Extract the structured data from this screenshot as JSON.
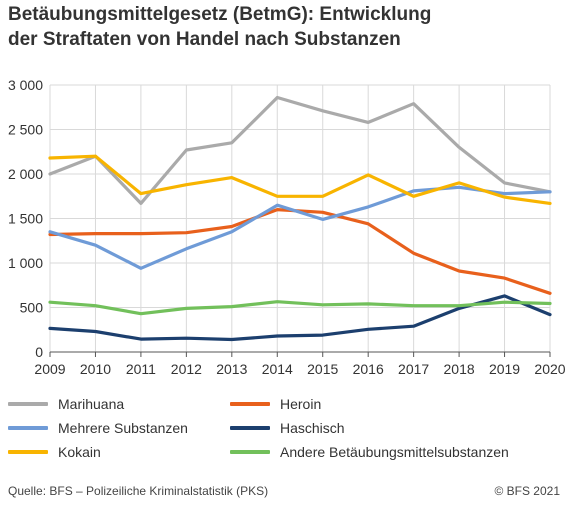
{
  "header": {
    "title_line1": "Betäubungsmittelgesetz (BetmG): Entwicklung",
    "title_line2": "der Straftaten von Handel nach Substanzen"
  },
  "footer": {
    "source": "Quelle: BFS – Polizeiliche Kriminalstatistik (PKS)",
    "copyright": "© BFS 2021"
  },
  "chart_data": {
    "type": "line",
    "title": "Betäubungsmittelgesetz (BetmG): Entwicklung der Straftaten von Handel nach Substanzen",
    "x": [
      "2009",
      "2010",
      "2011",
      "2012",
      "2013",
      "2014",
      "2015",
      "2016",
      "2017",
      "2018",
      "2019",
      "2020"
    ],
    "ylim": [
      0,
      3000
    ],
    "yticks": [
      0,
      500,
      1000,
      1500,
      2000,
      2500,
      3000
    ],
    "ytick_labels": [
      "0",
      "500",
      "1 000",
      "1 500",
      "2 000",
      "2 500",
      "3 000"
    ],
    "grid": true,
    "legend_position": "bottom",
    "series": [
      {
        "name": "Marihuana",
        "color": "#aaaaaa",
        "values": [
          2000,
          2200,
          1670,
          2270,
          2350,
          2860,
          2710,
          2580,
          2790,
          2300,
          1900,
          1800
        ]
      },
      {
        "name": "Heroin",
        "color": "#e8601c",
        "values": [
          1320,
          1330,
          1330,
          1340,
          1410,
          1600,
          1570,
          1440,
          1110,
          910,
          830,
          660
        ]
      },
      {
        "name": "Mehrere Substanzen",
        "color": "#6f9bd7",
        "values": [
          1350,
          1200,
          940,
          1160,
          1350,
          1650,
          1490,
          1630,
          1810,
          1850,
          1780,
          1800
        ]
      },
      {
        "name": "Haschisch",
        "color": "#1c3f6e",
        "values": [
          265,
          230,
          145,
          155,
          140,
          180,
          190,
          255,
          290,
          490,
          630,
          420
        ]
      },
      {
        "name": "Kokain",
        "color": "#f8b400",
        "values": [
          2180,
          2200,
          1780,
          1880,
          1960,
          1750,
          1750,
          1990,
          1750,
          1900,
          1740,
          1670
        ]
      },
      {
        "name": "Andere Betäubungsmittelsubstanzen",
        "color": "#72c05b",
        "values": [
          560,
          520,
          430,
          490,
          510,
          565,
          530,
          540,
          520,
          520,
          560,
          545
        ]
      }
    ]
  }
}
